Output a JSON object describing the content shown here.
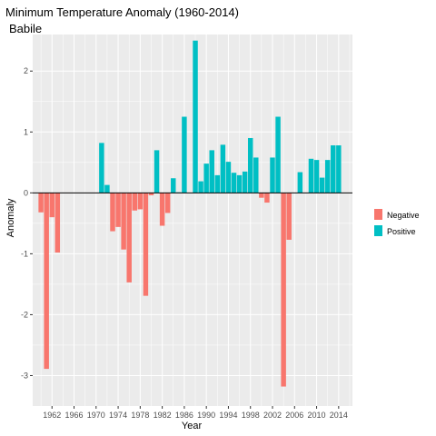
{
  "chart_data": {
    "type": "bar",
    "title": "Minimum Temperature Anomaly (1960-2014)",
    "subtitle": "Babile",
    "xlabel": "Year",
    "ylabel": "Anomaly",
    "xlim": [
      1958.5,
      2016.5
    ],
    "ylim": [
      -3.5,
      2.6
    ],
    "x_ticks": [
      1962,
      1966,
      1970,
      1974,
      1978,
      1982,
      1986,
      1990,
      1994,
      1998,
      2002,
      2006,
      2010,
      2014
    ],
    "y_ticks": [
      -3,
      -2,
      -1,
      0,
      1,
      2
    ],
    "grid": true,
    "legend_position": "right",
    "legend": [
      {
        "label": "Negative",
        "color": "#F8766D"
      },
      {
        "label": "Positive",
        "color": "#00BFC4"
      }
    ],
    "colors": {
      "negative": "#F8766D",
      "positive": "#00BFC4",
      "panel": "#EBEBEB",
      "grid": "#ffffff"
    },
    "x": [
      1960,
      1961,
      1962,
      1963,
      1971,
      1972,
      1973,
      1974,
      1975,
      1976,
      1977,
      1978,
      1979,
      1980,
      1981,
      1982,
      1983,
      1984,
      1985,
      1986,
      1988,
      1989,
      1990,
      1991,
      1992,
      1993,
      1994,
      1995,
      1996,
      1997,
      1998,
      1999,
      2000,
      2001,
      2002,
      2003,
      2004,
      2005,
      2007,
      2009,
      2010,
      2011,
      2012,
      2013,
      2014
    ],
    "values": [
      -0.32,
      -2.89,
      -0.4,
      -0.98,
      0.82,
      0.13,
      -0.63,
      -0.56,
      -0.93,
      -1.47,
      -0.29,
      -0.27,
      -1.69,
      -0.04,
      0.7,
      -0.54,
      -0.33,
      0.24,
      0.01,
      1.25,
      2.5,
      0.19,
      0.48,
      0.7,
      0.29,
      0.79,
      0.51,
      0.33,
      0.29,
      0.35,
      0.9,
      0.58,
      -0.08,
      -0.16,
      0.58,
      1.25,
      -3.18,
      -0.77,
      0.34,
      0.56,
      0.54,
      0.25,
      0.54,
      0.78,
      0.78
    ]
  }
}
